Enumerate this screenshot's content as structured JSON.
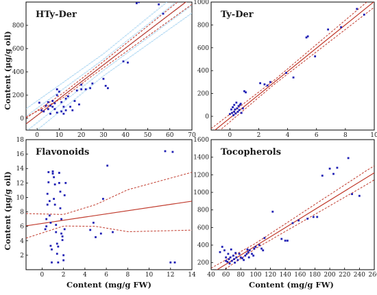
{
  "figure": {
    "ylabel_top": "Content (μg/g oil)",
    "ylabel_bottom": "Content (μg/g oil)",
    "xlabel_bottom_left": "Content (mg/g FW)",
    "xlabel_bottom_right": "Content (mg/g FW)"
  },
  "colors": {
    "points": "#1f1fb4",
    "fit": "#c0392b",
    "ci": "#c0392b",
    "band": "#9fd0f0"
  },
  "chart_data": [
    {
      "type": "scatter",
      "title": "HTy-Der",
      "xlim": [
        -5,
        70
      ],
      "ylim": [
        -100,
        1000
      ],
      "xticks": [
        0,
        10,
        20,
        30,
        40,
        50,
        60,
        70
      ],
      "yticks": [
        0,
        200,
        400,
        600,
        800
      ],
      "fit": {
        "intercept": 25,
        "slope": 14.5
      },
      "ci": [
        [
          -5,
          50,
          -60
        ],
        [
          12,
          22,
          20
        ],
        [
          25,
          26,
          20
        ],
        [
          40,
          35,
          35
        ],
        [
          70,
          60,
          60
        ]
      ],
      "band": true,
      "points": [
        [
          1,
          135
        ],
        [
          2,
          70
        ],
        [
          3,
          60
        ],
        [
          4,
          110
        ],
        [
          5,
          80
        ],
        [
          5,
          140
        ],
        [
          6,
          40
        ],
        [
          6,
          110
        ],
        [
          7,
          100
        ],
        [
          7,
          150
        ],
        [
          8,
          80
        ],
        [
          8,
          130
        ],
        [
          9,
          50
        ],
        [
          9,
          200
        ],
        [
          9,
          250
        ],
        [
          10,
          230
        ],
        [
          11,
          140
        ],
        [
          11,
          60
        ],
        [
          12,
          100
        ],
        [
          12,
          40
        ],
        [
          13,
          170
        ],
        [
          13,
          70
        ],
        [
          14,
          190
        ],
        [
          15,
          100
        ],
        [
          16,
          70
        ],
        [
          17,
          150
        ],
        [
          18,
          240
        ],
        [
          19,
          120
        ],
        [
          20,
          250
        ],
        [
          20,
          290
        ],
        [
          22,
          250
        ],
        [
          24,
          260
        ],
        [
          25,
          300
        ],
        [
          30,
          340
        ],
        [
          31,
          280
        ],
        [
          32,
          260
        ],
        [
          39,
          490
        ],
        [
          41,
          480
        ],
        [
          45,
          990
        ],
        [
          46,
          1000
        ],
        [
          55,
          980
        ],
        [
          57,
          900
        ],
        [
          65,
          1010
        ]
      ]
    },
    {
      "type": "scatter",
      "title": "Ty-Der",
      "xlim": [
        -1.3,
        10
      ],
      "ylim": [
        -120,
        1000
      ],
      "xticks": [
        0,
        2,
        4,
        6,
        8,
        10
      ],
      "yticks": [
        0,
        200,
        400,
        600,
        800,
        1000
      ],
      "fit": {
        "intercept": -15,
        "slope": 102
      },
      "ci": [
        [
          -1.3,
          40,
          40
        ],
        [
          3,
          18,
          18
        ],
        [
          10,
          50,
          50
        ]
      ],
      "band": false,
      "points": [
        [
          0,
          20
        ],
        [
          0.1,
          60
        ],
        [
          0.15,
          30
        ],
        [
          0.2,
          80
        ],
        [
          0.25,
          10
        ],
        [
          0.3,
          40
        ],
        [
          0.3,
          100
        ],
        [
          0.35,
          60
        ],
        [
          0.4,
          25
        ],
        [
          0.45,
          120
        ],
        [
          0.5,
          70
        ],
        [
          0.55,
          40
        ],
        [
          0.6,
          90
        ],
        [
          0.65,
          55
        ],
        [
          0.7,
          100
        ],
        [
          0.75,
          110
        ],
        [
          0.8,
          30
        ],
        [
          0.9,
          70
        ],
        [
          1.0,
          220
        ],
        [
          1.1,
          210
        ],
        [
          2.1,
          290
        ],
        [
          2.4,
          280
        ],
        [
          2.6,
          270
        ],
        [
          2.8,
          300
        ],
        [
          3.9,
          380
        ],
        [
          4.4,
          340
        ],
        [
          5.3,
          690
        ],
        [
          5.4,
          700
        ],
        [
          5.9,
          525
        ],
        [
          6.8,
          760
        ],
        [
          7.7,
          780
        ],
        [
          8.8,
          940
        ],
        [
          9.3,
          890
        ]
      ]
    },
    {
      "type": "scatter",
      "title": "Flavonoids",
      "xlim": [
        -1.5,
        14
      ],
      "ylim": [
        0,
        18
      ],
      "xticks": [
        0,
        2,
        4,
        6,
        8,
        10,
        12,
        14
      ],
      "yticks": [
        2,
        4,
        6,
        8,
        10,
        12,
        14,
        16,
        18
      ],
      "fit": {
        "intercept": 6.4,
        "slope": 0.22
      },
      "ci": [
        [
          -1.5,
          1.7,
          1.7
        ],
        [
          2,
          0.8,
          0.8
        ],
        [
          5,
          1.5,
          1.5
        ],
        [
          8,
          2.9,
          2.9
        ],
        [
          14,
          4.0,
          4.0
        ]
      ],
      "band": false,
      "points": [
        [
          0.3,
          5.6
        ],
        [
          0.4,
          7.0
        ],
        [
          0.4,
          6.0
        ],
        [
          0.5,
          9.0
        ],
        [
          0.5,
          10.5
        ],
        [
          0.6,
          12.1
        ],
        [
          0.6,
          13.5
        ],
        [
          0.7,
          9.5
        ],
        [
          0.7,
          7.5
        ],
        [
          0.8,
          6.5
        ],
        [
          0.8,
          3.3
        ],
        [
          0.9,
          1.0
        ],
        [
          0.9,
          2.8
        ],
        [
          1.0,
          13.6
        ],
        [
          1.0,
          13.3
        ],
        [
          1.1,
          9.8
        ],
        [
          1.1,
          12.8
        ],
        [
          1.2,
          11.8
        ],
        [
          1.2,
          9.0
        ],
        [
          1.3,
          6.2
        ],
        [
          1.3,
          5.2
        ],
        [
          1.4,
          3.6
        ],
        [
          1.4,
          2.2
        ],
        [
          1.5,
          3.2
        ],
        [
          1.5,
          1.0
        ],
        [
          1.6,
          13.4
        ],
        [
          1.6,
          12.0
        ],
        [
          1.7,
          10.8
        ],
        [
          1.7,
          8.5
        ],
        [
          1.8,
          7.0
        ],
        [
          1.8,
          5.0
        ],
        [
          1.9,
          4.6
        ],
        [
          1.9,
          4.1
        ],
        [
          2.0,
          2.0
        ],
        [
          2.0,
          1.3
        ],
        [
          2.1,
          5.6
        ],
        [
          2.1,
          10.3
        ],
        [
          2.2,
          12.0
        ],
        [
          4.5,
          5.5
        ],
        [
          4.8,
          6.5
        ],
        [
          5.0,
          4.5
        ],
        [
          5.5,
          5.0
        ],
        [
          5.7,
          9.8
        ],
        [
          6.1,
          14.4
        ],
        [
          6.6,
          5.2
        ],
        [
          11.5,
          16.4
        ],
        [
          12.0,
          1.0
        ],
        [
          12.2,
          16.3
        ],
        [
          12.4,
          1.0
        ]
      ]
    },
    {
      "type": "scatter",
      "title": "Tocopherols",
      "xlim": [
        40,
        260
      ],
      "ylim": [
        120,
        1600
      ],
      "xticks": [
        40,
        60,
        80,
        100,
        120,
        140,
        160,
        180,
        200,
        220,
        240,
        260
      ],
      "yticks": [
        200,
        400,
        600,
        800,
        1000,
        1200,
        1400,
        1600
      ],
      "fit": {
        "intercept": -130,
        "slope": 5.2
      },
      "ci": [
        [
          40,
          60,
          60
        ],
        [
          100,
          30,
          30
        ],
        [
          250,
          80,
          80
        ]
      ],
      "band": false,
      "points": [
        [
          52,
          320
        ],
        [
          55,
          380
        ],
        [
          58,
          340
        ],
        [
          60,
          260
        ],
        [
          60,
          220
        ],
        [
          62,
          210
        ],
        [
          63,
          300
        ],
        [
          64,
          240
        ],
        [
          65,
          190
        ],
        [
          66,
          260
        ],
        [
          67,
          350
        ],
        [
          68,
          220
        ],
        [
          70,
          280
        ],
        [
          71,
          240
        ],
        [
          72,
          200
        ],
        [
          73,
          310
        ],
        [
          74,
          260
        ],
        [
          76,
          230
        ],
        [
          78,
          300
        ],
        [
          80,
          260
        ],
        [
          82,
          250
        ],
        [
          84,
          230
        ],
        [
          86,
          280
        ],
        [
          88,
          300
        ],
        [
          89,
          350
        ],
        [
          90,
          320
        ],
        [
          91,
          260
        ],
        [
          92,
          340
        ],
        [
          95,
          300
        ],
        [
          97,
          280
        ],
        [
          98,
          360
        ],
        [
          100,
          380
        ],
        [
          105,
          400
        ],
        [
          108,
          360
        ],
        [
          110,
          340
        ],
        [
          112,
          480
        ],
        [
          123,
          780
        ],
        [
          135,
          470
        ],
        [
          140,
          450
        ],
        [
          143,
          450
        ],
        [
          150,
          650
        ],
        [
          158,
          680
        ],
        [
          170,
          700
        ],
        [
          178,
          720
        ],
        [
          183,
          720
        ],
        [
          190,
          1190
        ],
        [
          200,
          1270
        ],
        [
          205,
          1210
        ],
        [
          210,
          1280
        ],
        [
          225,
          1390
        ],
        [
          230,
          980
        ],
        [
          240,
          960
        ]
      ]
    }
  ]
}
